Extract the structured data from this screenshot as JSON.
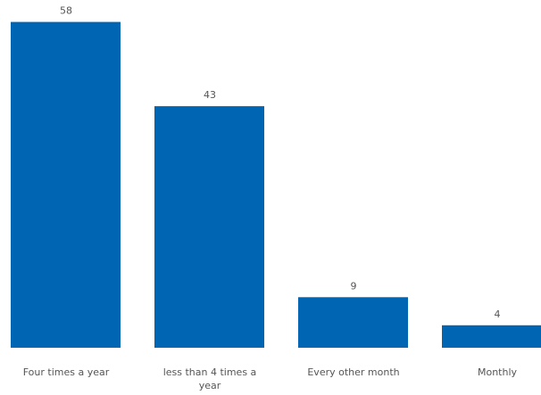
{
  "chart_data": {
    "type": "bar",
    "categories": [
      "Four times a year",
      "less than 4 times a year",
      "Every other month",
      "Monthly"
    ],
    "category_label_lines": [
      [
        "Four times a year"
      ],
      [
        "less than 4 times a",
        "year"
      ],
      [
        "Every other month"
      ],
      [
        "Monthly"
      ]
    ],
    "values": [
      58,
      43,
      9,
      4
    ],
    "data_labels": [
      "58",
      "43",
      "9",
      "4"
    ],
    "ylim": [
      0,
      60
    ],
    "bar_color": "#0066b3",
    "grid": false,
    "legend": "none"
  }
}
